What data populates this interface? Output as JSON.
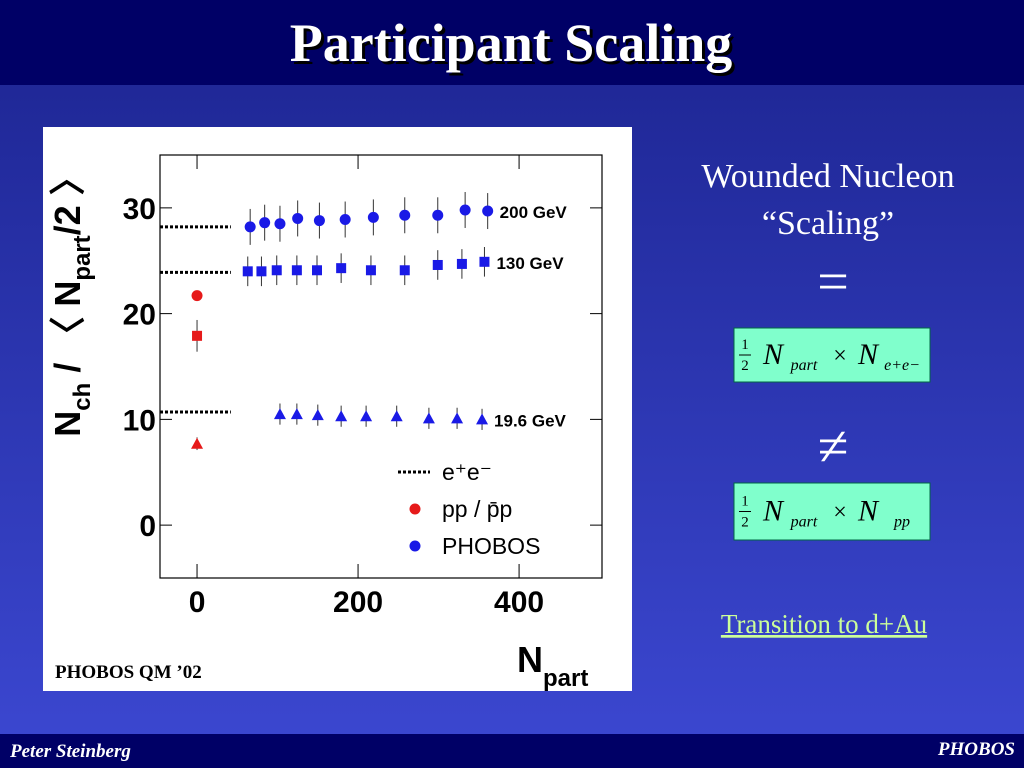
{
  "title": "Participant Scaling",
  "footer": {
    "left": "Peter Steinberg",
    "right": "PHOBOS"
  },
  "side": {
    "line1": "Wounded Nucleon",
    "line2": "“Scaling”",
    "equal": "=",
    "not_equal": "≠",
    "formulas": [
      {
        "numerator": "1",
        "denominator": "2",
        "n1": "N",
        "sub1": "part",
        "times": "×",
        "n2": "N",
        "sub2": "e+e−"
      },
      {
        "numerator": "1",
        "denominator": "2",
        "n1": "N",
        "sub1": "part",
        "times": "×",
        "n2": "N",
        "sub2": "pp"
      }
    ],
    "link": "Transition to d+Au"
  },
  "chart_data": {
    "type": "scatter",
    "caption": "PHOBOS QM ’02",
    "ylabel_parts": [
      "N",
      "ch",
      " / 〈 N",
      "part",
      "/2 〉"
    ],
    "xlabel_parts": [
      "N",
      "part"
    ],
    "xlim": [
      -46,
      503
    ],
    "ylim": [
      -5,
      35
    ],
    "xticks": [
      0,
      200,
      400
    ],
    "yticks": [
      0,
      10,
      20,
      30
    ],
    "series": [
      {
        "name": "200 GeV",
        "color": "#1a1ae6",
        "marker": "circle",
        "x": [
          66,
          84,
          103,
          125,
          152,
          184,
          219,
          258,
          299,
          333,
          361
        ],
        "values": [
          28.2,
          28.6,
          28.5,
          29.0,
          28.8,
          28.9,
          29.1,
          29.3,
          29.3,
          29.8,
          29.7
        ],
        "errors": [
          1.7,
          1.7,
          1.7,
          1.7,
          1.7,
          1.7,
          1.7,
          1.7,
          1.7,
          1.7,
          1.7
        ]
      },
      {
        "name": "130 GeV",
        "color": "#1a1ae6",
        "marker": "square",
        "x": [
          63,
          80,
          99,
          124,
          149,
          179,
          216,
          258,
          299,
          329,
          357
        ],
        "values": [
          24.0,
          24.0,
          24.1,
          24.1,
          24.1,
          24.3,
          24.1,
          24.1,
          24.6,
          24.7,
          24.9
        ],
        "errors": [
          1.4,
          1.4,
          1.4,
          1.4,
          1.4,
          1.4,
          1.4,
          1.4,
          1.4,
          1.4,
          1.4
        ]
      },
      {
        "name": "19.6 GeV",
        "color": "#1a1ae6",
        "marker": "triangle",
        "x": [
          103,
          124,
          150,
          179,
          210,
          248,
          288,
          323,
          354
        ],
        "values": [
          10.5,
          10.5,
          10.4,
          10.3,
          10.3,
          10.3,
          10.1,
          10.1,
          10.0
        ],
        "errors": [
          1.0,
          1.0,
          1.0,
          1.0,
          1.0,
          1.0,
          1.0,
          1.0,
          1.0
        ]
      }
    ],
    "pp": {
      "color": "#e61a1a",
      "x": [
        0,
        0,
        0
      ],
      "values": [
        21.7,
        17.9,
        7.7
      ],
      "errors": [
        0.4,
        1.5,
        0.6
      ],
      "markers": [
        "circle",
        "square",
        "triangle"
      ]
    },
    "ee_lines": {
      "xrange": [
        -46,
        42
      ],
      "values": [
        28.2,
        23.9,
        10.7
      ]
    },
    "legend": [
      {
        "label": "e⁺e⁻",
        "kind": "dotted",
        "color": "#000000"
      },
      {
        "label": "pp / p̄p",
        "kind": "dot",
        "color": "#e61a1a"
      },
      {
        "label": "PHOBOS",
        "kind": "dot",
        "color": "#1a1ae6"
      }
    ]
  }
}
